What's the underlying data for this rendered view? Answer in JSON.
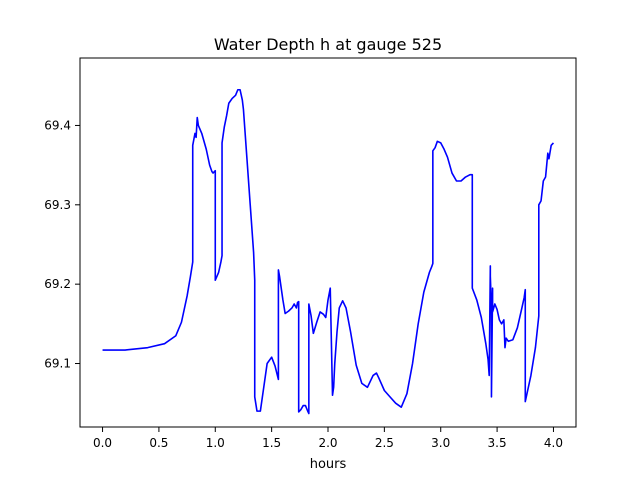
{
  "chart_data": {
    "type": "line",
    "title": "Water Depth h at gauge 525",
    "xlabel": "hours",
    "ylabel": "",
    "xlim": [
      -0.2,
      4.2
    ],
    "ylim": [
      69.02,
      69.485
    ],
    "xticks": [
      0.0,
      0.5,
      1.0,
      1.5,
      2.0,
      2.5,
      3.0,
      3.5,
      4.0
    ],
    "xtick_labels": [
      "0.0",
      "0.5",
      "1.0",
      "1.5",
      "2.0",
      "2.5",
      "3.0",
      "3.5",
      "4.0"
    ],
    "yticks": [
      69.1,
      69.2,
      69.3,
      69.4
    ],
    "ytick_labels": [
      "69.1",
      "69.2",
      "69.3",
      "69.4"
    ],
    "grid": false,
    "line_color": "#0000ff",
    "series": [
      {
        "x": [
          0.0,
          0.2,
          0.4,
          0.55,
          0.65,
          0.7,
          0.75,
          0.78,
          0.8,
          0.8,
          0.82,
          0.83,
          0.84,
          0.85,
          0.88,
          0.92,
          0.95,
          0.97,
          0.98,
          1.0,
          1.0,
          1.03,
          1.05,
          1.06,
          1.06,
          1.08,
          1.1,
          1.12,
          1.15,
          1.18,
          1.2,
          1.22,
          1.24,
          1.25,
          1.28,
          1.31,
          1.34,
          1.35,
          1.35,
          1.37,
          1.4,
          1.43,
          1.46,
          1.5,
          1.53,
          1.56,
          1.56,
          1.57,
          1.6,
          1.62,
          1.65,
          1.68,
          1.7,
          1.72,
          1.73,
          1.74,
          1.74,
          1.76,
          1.78,
          1.8,
          1.82,
          1.83,
          1.83,
          1.85,
          1.87,
          1.9,
          1.93,
          1.96,
          1.98,
          2.0,
          2.02,
          2.04,
          2.05,
          2.06,
          2.08,
          2.1,
          2.13,
          2.16,
          2.2,
          2.25,
          2.3,
          2.35,
          2.4,
          2.43,
          2.45,
          2.5,
          2.55,
          2.6,
          2.65,
          2.7,
          2.75,
          2.8,
          2.85,
          2.9,
          2.92,
          2.93,
          2.93,
          2.95,
          2.97,
          3.0,
          3.03,
          3.06,
          3.1,
          3.14,
          3.18,
          3.22,
          3.26,
          3.28,
          3.28,
          3.32,
          3.36,
          3.4,
          3.42,
          3.43,
          3.44,
          3.44,
          3.45,
          3.45,
          3.46,
          3.46,
          3.48,
          3.5,
          3.52,
          3.54,
          3.56,
          3.57,
          3.58,
          3.6,
          3.64,
          3.68,
          3.72,
          3.74,
          3.75,
          3.75,
          3.8,
          3.84,
          3.87,
          3.87,
          3.89,
          3.91,
          3.93,
          3.94,
          3.95,
          3.96,
          3.98,
          4.0
        ],
        "y": [
          69.117,
          69.117,
          69.12,
          69.125,
          69.135,
          69.152,
          69.185,
          69.21,
          69.228,
          69.375,
          69.39,
          69.385,
          69.41,
          69.4,
          69.39,
          69.37,
          69.35,
          69.342,
          69.34,
          69.343,
          69.205,
          69.215,
          69.228,
          69.236,
          69.378,
          69.398,
          69.412,
          69.428,
          69.434,
          69.438,
          69.445,
          69.445,
          69.432,
          69.42,
          69.36,
          69.3,
          69.24,
          69.205,
          69.058,
          69.04,
          69.04,
          69.07,
          69.1,
          69.108,
          69.097,
          69.08,
          69.218,
          69.21,
          69.18,
          69.163,
          69.166,
          69.17,
          69.175,
          69.17,
          69.177,
          69.178,
          69.039,
          69.042,
          69.047,
          69.047,
          69.04,
          69.037,
          69.175,
          69.16,
          69.138,
          69.152,
          69.165,
          69.162,
          69.158,
          69.18,
          69.195,
          69.06,
          69.07,
          69.1,
          69.14,
          69.17,
          69.179,
          69.17,
          69.14,
          69.098,
          69.075,
          69.07,
          69.085,
          69.088,
          69.082,
          69.066,
          69.058,
          69.05,
          69.045,
          69.062,
          69.1,
          69.15,
          69.19,
          69.215,
          69.222,
          69.226,
          69.368,
          69.372,
          69.38,
          69.378,
          69.37,
          69.36,
          69.34,
          69.33,
          69.33,
          69.335,
          69.338,
          69.338,
          69.195,
          69.18,
          69.158,
          69.125,
          69.105,
          69.085,
          69.223,
          69.21,
          69.17,
          69.058,
          69.195,
          69.165,
          69.175,
          69.168,
          69.155,
          69.15,
          69.155,
          69.12,
          69.132,
          69.128,
          69.13,
          69.145,
          69.17,
          69.183,
          69.193,
          69.052,
          69.085,
          69.12,
          69.16,
          69.3,
          69.305,
          69.33,
          69.335,
          69.35,
          69.365,
          69.358,
          69.375,
          69.378
        ]
      }
    ]
  }
}
